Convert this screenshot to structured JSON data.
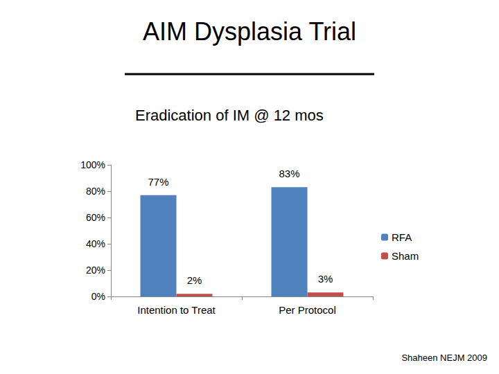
{
  "chart_data": {
    "type": "bar",
    "title": "AIM Dysplasia Trial",
    "subtitle": "Eradication of IM @ 12 mos",
    "annotation": "Shaheen NEJM 2009",
    "categories": [
      "Intention to Treat",
      "Per Protocol"
    ],
    "series": [
      {
        "name": "RFA",
        "color": "#4f81bd",
        "values": [
          77,
          83
        ],
        "value_labels": [
          "77%",
          "83%"
        ]
      },
      {
        "name": "Sham",
        "color": "#c0504d",
        "values": [
          2,
          3
        ],
        "value_labels": [
          "2%",
          "3%"
        ]
      }
    ],
    "ylim": [
      0,
      100
    ],
    "yticks": [
      {
        "value": 0,
        "label": "0%"
      },
      {
        "value": 20,
        "label": "20%"
      },
      {
        "value": 40,
        "label": "40%"
      },
      {
        "value": 60,
        "label": "60%"
      },
      {
        "value": 80,
        "label": "80%"
      },
      {
        "value": 100,
        "label": "100%"
      }
    ],
    "grid": false,
    "legend": "right",
    "data_labels": true
  }
}
